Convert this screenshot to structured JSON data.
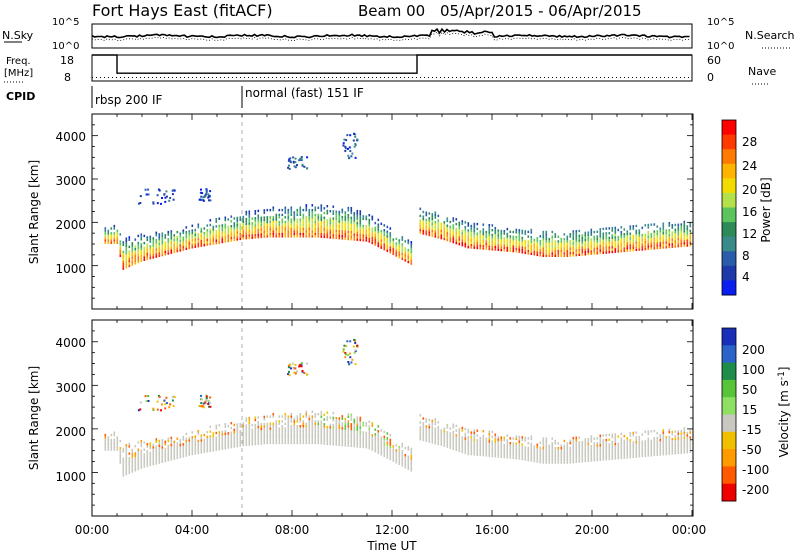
{
  "header": {
    "station": "Fort Hays East (fitACF)",
    "beam": "Beam 00",
    "date_range": "05/Apr/2015 - 06/Apr/2015"
  },
  "scalars": {
    "nsky_label": "N.Sky",
    "nsearch_label": "N.Search",
    "freq_label_top": "Freq.",
    "freq_label_bottom": "[MHz]",
    "nave_label": "Nave",
    "cpid_label": "CPID",
    "noise_ticks": [
      "10^5",
      "10^0"
    ],
    "freq_ticks": [
      "18",
      "8"
    ],
    "nave_ticks": [
      "60",
      "0"
    ],
    "freq_steps": [
      {
        "t0": 0.0,
        "t1": 1.0,
        "mhz": 18
      },
      {
        "t0": 1.0,
        "t1": 13.0,
        "mhz": 11
      },
      {
        "t0": 13.0,
        "t1": 24.0,
        "mhz": 18
      }
    ],
    "nave_level": 8
  },
  "cpid": {
    "segments": [
      {
        "label": "rbsp 200 IF",
        "start_hour": 0
      },
      {
        "label": "normal (fast) 151 IF",
        "start_hour": 6
      }
    ]
  },
  "power_panel": {
    "ylabel": "Slant Range [km]",
    "yticks": [
      "4000",
      "3000",
      "2000",
      "1000"
    ],
    "colorbar_label": "Power [dB]",
    "colorbar_ticks": [
      "28",
      "24",
      "20",
      "16",
      "12",
      "8",
      "4"
    ],
    "colorbar_colors": [
      "#ff0000",
      "#ff3a00",
      "#ff7a00",
      "#ffb400",
      "#f2dc00",
      "#b4e04a",
      "#5cc45c",
      "#2e8b57",
      "#3a8a8a",
      "#2a5caa",
      "#1e3aa8",
      "#0a1ef0"
    ]
  },
  "velocity_panel": {
    "ylabel": "Slant Range [km]",
    "yticks": [
      "4000",
      "3000",
      "2000",
      "1000"
    ],
    "colorbar_label": "Velocity [m s",
    "colorbar_label_sup": "-1",
    "colorbar_label_end": "]",
    "colorbar_ticks": [
      "200",
      "100",
      "50",
      "15",
      "-15",
      "-50",
      "-100",
      "-200"
    ],
    "colorbar_colors": [
      "#1a2fb8",
      "#2b63c9",
      "#1e8c4a",
      "#57c43a",
      "#8ee063",
      "#c8c8c0",
      "#f0c000",
      "#ff9a00",
      "#ff5a00",
      "#ee0000"
    ]
  },
  "xaxis": {
    "title": "Time UT",
    "ticks": [
      "00:00",
      "04:00",
      "08:00",
      "12:00",
      "16:00",
      "20:00",
      "00:00"
    ]
  },
  "chart_data": {
    "type": "heatmap",
    "title": "Fort Hays East (fitACF)  Beam 00  05/Apr/2015 - 06/Apr/2015",
    "xlabel": "Time UT",
    "ylabel": "Slant Range [km]",
    "xlim": [
      0,
      24
    ],
    "ylim": [
      0,
      4500
    ],
    "panels": [
      {
        "name": "Power",
        "unit": "dB",
        "clim": [
          0,
          30
        ]
      },
      {
        "name": "Velocity",
        "unit": "m s-1",
        "clim": [
          -200,
          200
        ]
      }
    ],
    "echo_band": {
      "hours": [
        0.5,
        1.0,
        1.2,
        2,
        3,
        4,
        5,
        6,
        7,
        8,
        9,
        10,
        11,
        12,
        12.8,
        13.0,
        14,
        15,
        16,
        17,
        18,
        19,
        20,
        21,
        22,
        23,
        24
      ],
      "range_low_km": [
        1500,
        1500,
        900,
        1100,
        1250,
        1400,
        1500,
        1600,
        1650,
        1650,
        1650,
        1600,
        1550,
        1250,
        1000,
        1750,
        1600,
        1400,
        1350,
        1300,
        1200,
        1200,
        1250,
        1300,
        1350,
        1400,
        1450
      ],
      "range_high_km": [
        1900,
        1900,
        1600,
        1700,
        1800,
        1900,
        2100,
        2200,
        2300,
        2350,
        2400,
        2350,
        2200,
        1800,
        1500,
        2300,
        2200,
        2000,
        1900,
        1850,
        1800,
        1800,
        1850,
        1900,
        1950,
        2000,
        2050
      ]
    },
    "scatter_patches": [
      {
        "hours": [
          1.8,
          3.3
        ],
        "range_km": [
          2400,
          2800
        ]
      },
      {
        "hours": [
          4.2,
          4.7
        ],
        "range_km": [
          2500,
          2800
        ]
      },
      {
        "hours": [
          7.8,
          8.6
        ],
        "range_km": [
          3200,
          3600
        ]
      },
      {
        "hours": [
          10.0,
          10.6
        ],
        "range_km": [
          3500,
          4100
        ]
      }
    ]
  }
}
